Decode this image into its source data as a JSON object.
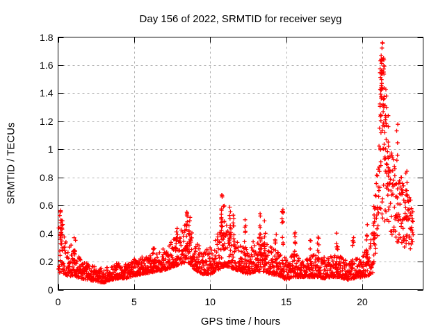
{
  "chart_data": {
    "type": "scatter",
    "title": "Day 156 of 2022, SRMTID for receiver seyg",
    "xlabel": "GPS time / hours",
    "ylabel": "SRMTID / TECUs",
    "xlim": [
      0,
      24
    ],
    "ylim": [
      0,
      1.8
    ],
    "grid": true,
    "legend": "none",
    "marker": "plus",
    "point_color": "#ff0000",
    "grid_color": "#b0b0b0",
    "axis_color": "#000000",
    "background_color": "#ffffff",
    "x_ticks": {
      "values": [
        0,
        5,
        10,
        15,
        20
      ],
      "labels": [
        "0",
        "5",
        "10",
        "15",
        "20"
      ]
    },
    "y_ticks": {
      "values": [
        0,
        0.2,
        0.4,
        0.6,
        0.8,
        1.0,
        1.2,
        1.4,
        1.6,
        1.8
      ],
      "labels": [
        "0",
        "0.2",
        "0.4",
        "0.6",
        "0.8",
        "1",
        "1.2",
        "1.4",
        "1.6",
        "1.8"
      ]
    },
    "envelope_band": [
      [
        0.0,
        0.12,
        0.45
      ],
      [
        0.3,
        0.12,
        0.42
      ],
      [
        0.6,
        0.1,
        0.35
      ],
      [
        1.0,
        0.09,
        0.3
      ],
      [
        1.5,
        0.08,
        0.22
      ],
      [
        2.0,
        0.07,
        0.18
      ],
      [
        2.5,
        0.06,
        0.16
      ],
      [
        3.0,
        0.05,
        0.15
      ],
      [
        3.5,
        0.07,
        0.17
      ],
      [
        4.0,
        0.08,
        0.2
      ],
      [
        4.5,
        0.08,
        0.18
      ],
      [
        5.0,
        0.1,
        0.22
      ],
      [
        5.5,
        0.11,
        0.24
      ],
      [
        6.0,
        0.12,
        0.26
      ],
      [
        6.5,
        0.13,
        0.27
      ],
      [
        7.0,
        0.14,
        0.3
      ],
      [
        7.5,
        0.16,
        0.36
      ],
      [
        8.0,
        0.18,
        0.44
      ],
      [
        8.5,
        0.2,
        0.5
      ],
      [
        9.0,
        0.14,
        0.36
      ],
      [
        9.5,
        0.11,
        0.28
      ],
      [
        10.0,
        0.11,
        0.3
      ],
      [
        10.5,
        0.14,
        0.4
      ],
      [
        11.0,
        0.17,
        0.5
      ],
      [
        11.5,
        0.15,
        0.42
      ],
      [
        12.0,
        0.13,
        0.32
      ],
      [
        12.5,
        0.11,
        0.28
      ],
      [
        13.0,
        0.13,
        0.38
      ],
      [
        13.5,
        0.13,
        0.38
      ],
      [
        14.0,
        0.11,
        0.3
      ],
      [
        14.5,
        0.1,
        0.28
      ],
      [
        15.0,
        0.07,
        0.22
      ],
      [
        15.5,
        0.09,
        0.26
      ],
      [
        16.0,
        0.09,
        0.23
      ],
      [
        16.5,
        0.09,
        0.24
      ],
      [
        17.0,
        0.09,
        0.26
      ],
      [
        17.5,
        0.08,
        0.23
      ],
      [
        18.0,
        0.09,
        0.26
      ],
      [
        18.5,
        0.09,
        0.24
      ],
      [
        19.0,
        0.07,
        0.2
      ],
      [
        19.5,
        0.08,
        0.22
      ],
      [
        20.0,
        0.09,
        0.25
      ],
      [
        20.4,
        0.1,
        0.3
      ],
      [
        20.7,
        0.12,
        0.45
      ],
      [
        21.0,
        0.3,
        0.9
      ],
      [
        21.2,
        0.45,
        1.5
      ],
      [
        21.4,
        0.5,
        1.6
      ],
      [
        21.6,
        0.45,
        1.25
      ],
      [
        21.8,
        0.4,
        1.05
      ],
      [
        22.0,
        0.38,
        0.95
      ],
      [
        22.3,
        0.33,
        0.88
      ],
      [
        22.6,
        0.3,
        0.8
      ],
      [
        23.0,
        0.28,
        0.7
      ],
      [
        23.35,
        0.22,
        0.6
      ]
    ],
    "spikes": [
      [
        0.15,
        0.3,
        0.61,
        12
      ],
      [
        0.28,
        0.33,
        0.5,
        8
      ],
      [
        1.1,
        0.15,
        0.37,
        7
      ],
      [
        6.3,
        0.16,
        0.33,
        7
      ],
      [
        7.8,
        0.22,
        0.45,
        8
      ],
      [
        8.45,
        0.28,
        0.57,
        12
      ],
      [
        8.65,
        0.28,
        0.52,
        9
      ],
      [
        10.75,
        0.3,
        0.68,
        14
      ],
      [
        10.9,
        0.28,
        0.6,
        9
      ],
      [
        11.3,
        0.28,
        0.62,
        12
      ],
      [
        11.55,
        0.22,
        0.55,
        8
      ],
      [
        12.3,
        0.2,
        0.52,
        9
      ],
      [
        13.3,
        0.22,
        0.56,
        10
      ],
      [
        13.6,
        0.2,
        0.5,
        8
      ],
      [
        14.3,
        0.18,
        0.4,
        6
      ],
      [
        14.75,
        0.25,
        0.58,
        12
      ],
      [
        15.6,
        0.15,
        0.43,
        8
      ],
      [
        16.6,
        0.14,
        0.38,
        6
      ],
      [
        17.1,
        0.16,
        0.45,
        8
      ],
      [
        18.35,
        0.18,
        0.47,
        9
      ],
      [
        19.4,
        0.14,
        0.38,
        6
      ],
      [
        20.3,
        0.18,
        0.5,
        8
      ],
      [
        20.8,
        0.3,
        0.65,
        8
      ],
      [
        21.2,
        0.9,
        1.72,
        16
      ],
      [
        21.3,
        1.35,
        1.78,
        22
      ],
      [
        21.4,
        1.0,
        1.7,
        14
      ],
      [
        21.55,
        0.8,
        1.45,
        10
      ],
      [
        21.7,
        0.7,
        1.25,
        8
      ],
      [
        22.3,
        0.88,
        1.22,
        5
      ],
      [
        22.9,
        0.4,
        0.92,
        6
      ]
    ],
    "sampling": {
      "x_start": 0.03,
      "x_end": 23.35,
      "x_step": 0.012,
      "seed": 20220156
    }
  }
}
